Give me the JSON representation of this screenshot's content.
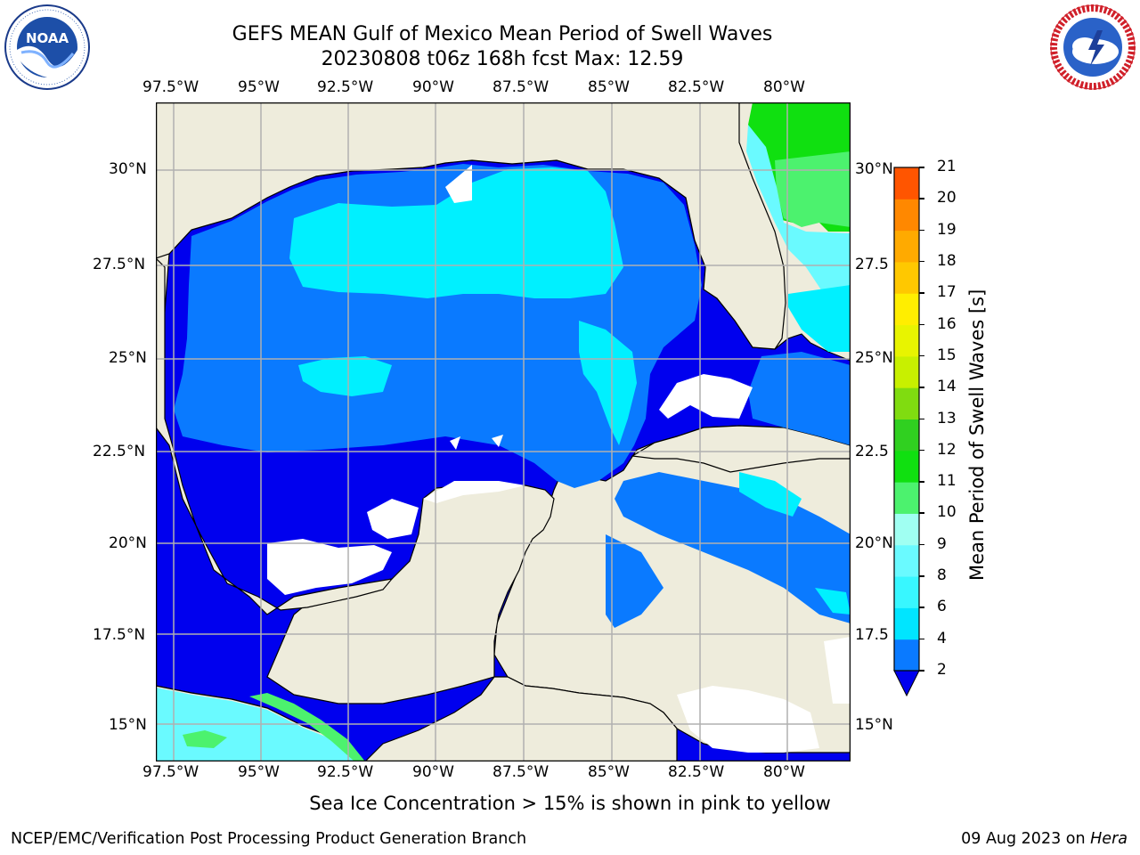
{
  "header": {
    "title_line1": "GEFS MEAN Gulf of Mexico Mean Period of Swell Waves",
    "title_line2": "20230808 t06z 168h fcst   Max: 12.59"
  },
  "logos": {
    "left": {
      "name": "noaa-logo",
      "text": "NOAA",
      "ring": "NATIONAL OCEANIC AND ATMOSPHERIC ADMINISTRATION · U.S. DEPARTMENT OF COMMERCE"
    },
    "right": {
      "name": "nws-logo",
      "ring": "NATIONAL WEATHER SERVICE"
    }
  },
  "axes": {
    "lon_labels": [
      "97.5°W",
      "95°W",
      "92.5°W",
      "90°W",
      "87.5°W",
      "85°W",
      "82.5°W",
      "80°W"
    ],
    "lat_labels_left": [
      "30°N",
      "27.5°N",
      "25°N",
      "22.5°N",
      "20°N",
      "17.5°N",
      "15°N"
    ],
    "lat_labels_right": [
      "30°N",
      "27.5",
      "25°N",
      "22.5",
      "20°N",
      "17.5",
      "15°N"
    ]
  },
  "colorbar": {
    "title": "Mean Period of Swell Waves [s]",
    "tick_labels": [
      "2",
      "4",
      "6",
      "8",
      "9",
      "10",
      "11",
      "12",
      "13",
      "14",
      "15",
      "16",
      "17",
      "18",
      "19",
      "20",
      "21"
    ],
    "colors": [
      "#0a7aff",
      "#00e5ff",
      "#38f7ff",
      "#6afaff",
      "#a0fff2",
      "#4cf26e",
      "#10e010",
      "#30d020",
      "#80dc10",
      "#c8f000",
      "#e8f400",
      "#ffee00",
      "#ffc800",
      "#ffaa00",
      "#ff8800",
      "#ff5500",
      "#ff2a00",
      "#ff0000"
    ],
    "under_color": "#0000ee"
  },
  "note": "Sea Ice Concentration > 15% is shown in pink to yellow",
  "footer": {
    "left": "NCEP/EMC/Verification Post Processing Product Generation Branch",
    "right_prefix": "09 Aug 2023 on ",
    "right_host": "Hera"
  },
  "map_colors": {
    "land": "#eeecdc",
    "deep_blue": "#0000ee",
    "blue": "#0a7aff",
    "cyan": "#00f0ff",
    "light_cyan": "#6afaff",
    "green": "#10e010",
    "light_green": "#4cf26e"
  }
}
